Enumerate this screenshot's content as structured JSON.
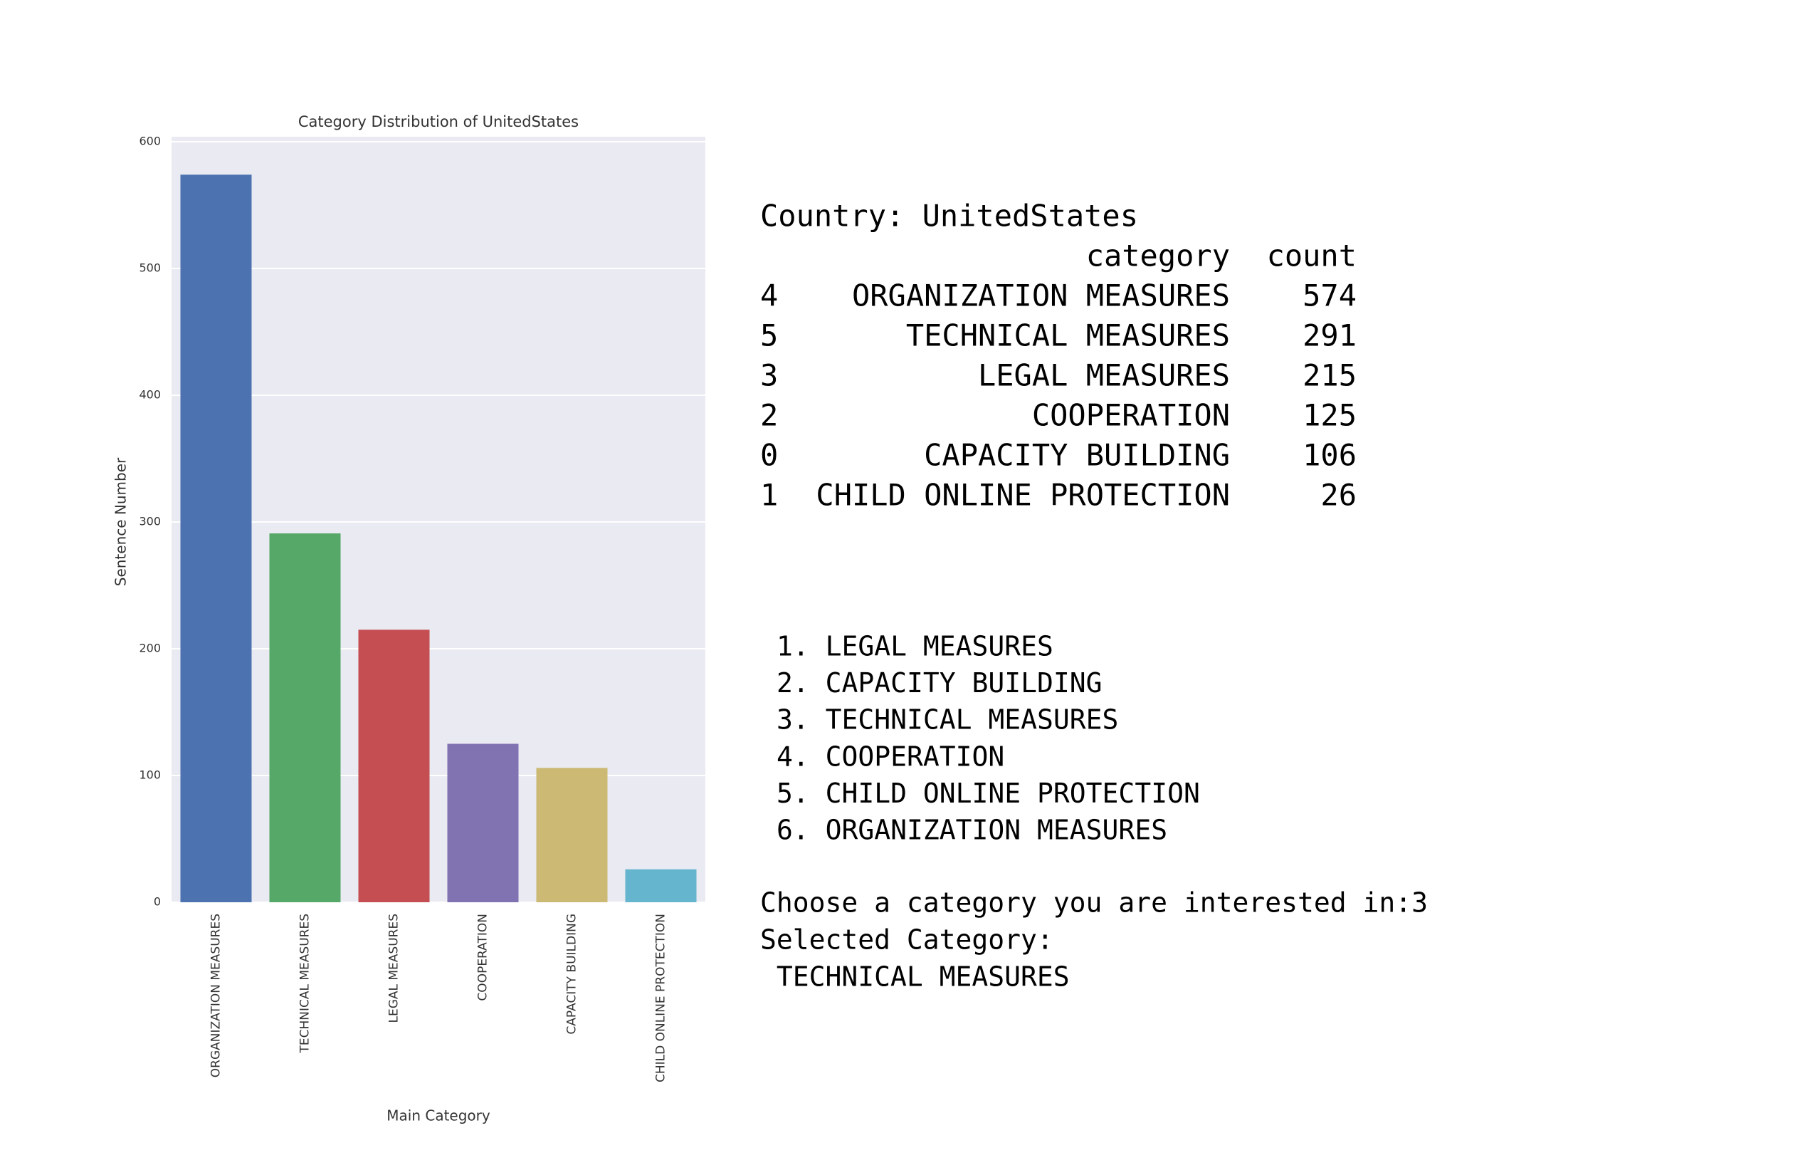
{
  "chart_data": {
    "type": "bar",
    "title": "Category Distribution of UnitedStates",
    "xlabel": "Main Category",
    "ylabel": "Sentence Number",
    "categories": [
      "ORGANIZATION MEASURES",
      "TECHNICAL MEASURES",
      "LEGAL MEASURES",
      "COOPERATION",
      "CAPACITY BUILDING",
      "CHILD ONLINE PROTECTION"
    ],
    "values": [
      574,
      291,
      215,
      125,
      106,
      26
    ],
    "colors": [
      "#4c72b0",
      "#55a868",
      "#c44e52",
      "#8172b2",
      "#ccb974",
      "#64b5cd"
    ],
    "ylim": [
      0,
      600
    ],
    "yticks": [
      0,
      100,
      200,
      300,
      400,
      500,
      600
    ],
    "grid": true
  },
  "output": {
    "country": "Country: UnitedStates",
    "table": {
      "header": [
        "category",
        "count"
      ],
      "index": [
        "4",
        "5",
        "3",
        "2",
        "0",
        "1"
      ]
    },
    "menu": [
      "1. LEGAL MEASURES",
      "2. CAPACITY BUILDING",
      "3. TECHNICAL MEASURES",
      "4. COOPERATION",
      "5. CHILD ONLINE PROTECTION",
      "6. ORGANIZATION MEASURES"
    ],
    "prompt": "Choose a category you are interested in:3",
    "selected_label": "Selected Category:",
    "selected_value": " TECHNICAL MEASURES"
  }
}
